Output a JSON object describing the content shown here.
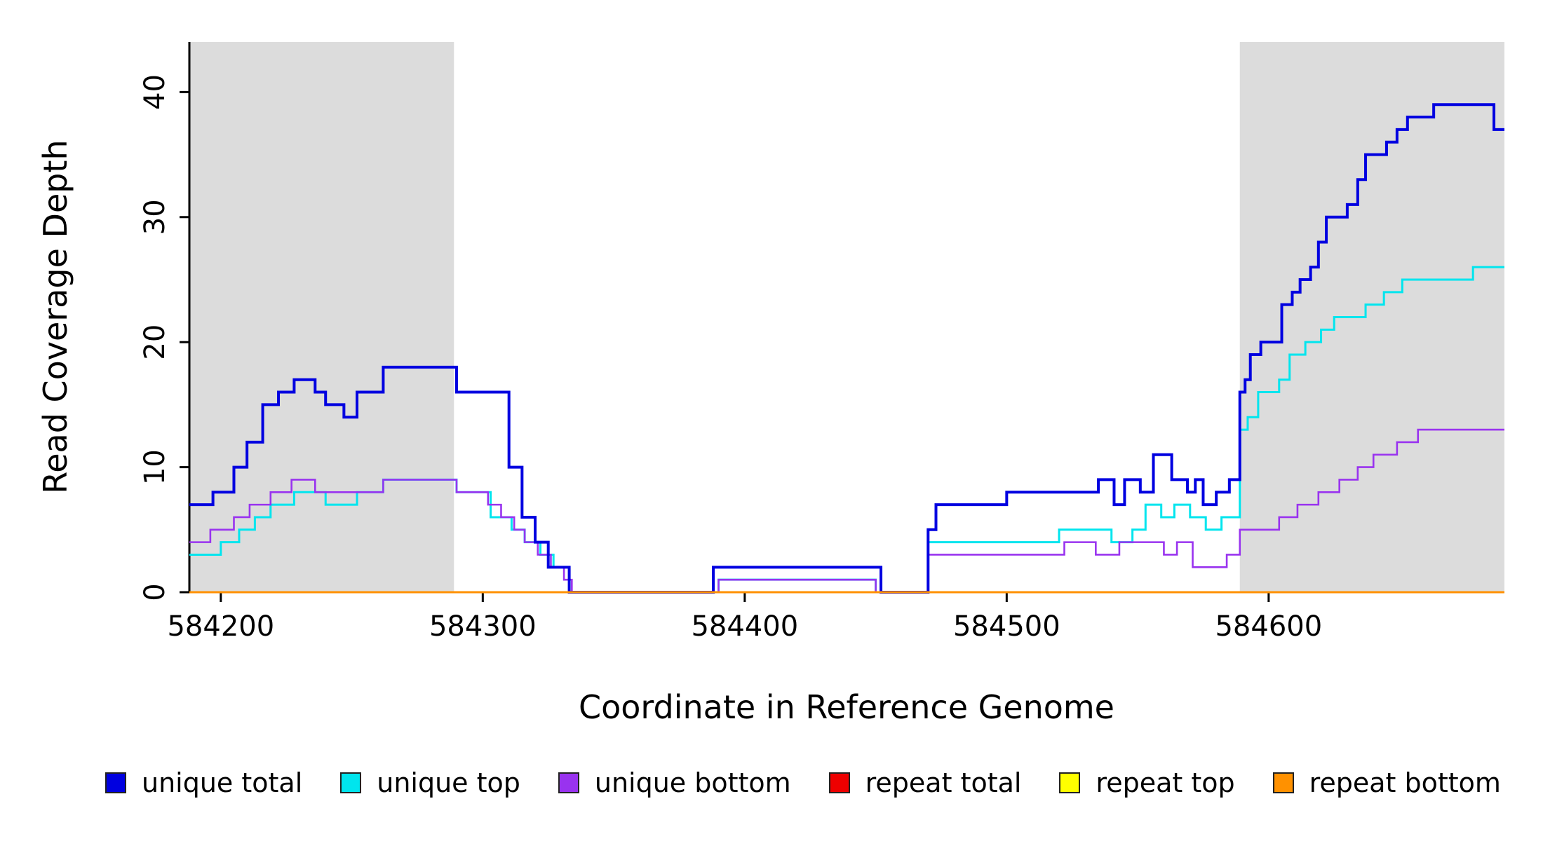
{
  "chart_data": {
    "type": "line",
    "subtype": "step-after-coverage-plot",
    "title": "",
    "xlabel": "Coordinate in Reference Genome",
    "ylabel": "Read Coverage Depth",
    "xlim": [
      584188,
      584690
    ],
    "ylim": [
      0,
      44
    ],
    "xticks": [
      584200,
      584300,
      584400,
      584500,
      584600
    ],
    "yticks": [
      0,
      10,
      20,
      30,
      40
    ],
    "grid": false,
    "legend_position": "bottom",
    "shaded_regions": [
      {
        "x0": 584188,
        "x1": 584289,
        "color": "#dcdcdc"
      },
      {
        "x0": 584589,
        "x1": 584690,
        "color": "#dcdcdc"
      }
    ],
    "series": [
      {
        "name": "unique total",
        "color": "#0000e0",
        "points": [
          [
            584188,
            7
          ],
          [
            584197,
            8
          ],
          [
            584205,
            10
          ],
          [
            584210,
            12
          ],
          [
            584216,
            15
          ],
          [
            584222,
            16
          ],
          [
            584228,
            17
          ],
          [
            584236,
            16
          ],
          [
            584240,
            15
          ],
          [
            584247,
            14
          ],
          [
            584252,
            16
          ],
          [
            584262,
            18
          ],
          [
            584290,
            16
          ],
          [
            584310,
            10
          ],
          [
            584315,
            6
          ],
          [
            584320,
            4
          ],
          [
            584325,
            2
          ],
          [
            584333,
            0
          ],
          [
            584388,
            2
          ],
          [
            584452,
            0
          ],
          [
            584470,
            5
          ],
          [
            584473,
            7
          ],
          [
            584500,
            8
          ],
          [
            584535,
            9
          ],
          [
            584541,
            7
          ],
          [
            584545,
            9
          ],
          [
            584551,
            8
          ],
          [
            584556,
            11
          ],
          [
            584563,
            9
          ],
          [
            584569,
            8
          ],
          [
            584572,
            9
          ],
          [
            584575,
            7
          ],
          [
            584580,
            8
          ],
          [
            584585,
            9
          ],
          [
            584589,
            16
          ],
          [
            584591,
            17
          ],
          [
            584593,
            19
          ],
          [
            584597,
            20
          ],
          [
            584605,
            23
          ],
          [
            584609,
            24
          ],
          [
            584612,
            25
          ],
          [
            584616,
            26
          ],
          [
            584619,
            28
          ],
          [
            584622,
            30
          ],
          [
            584630,
            31
          ],
          [
            584634,
            33
          ],
          [
            584637,
            35
          ],
          [
            584645,
            36
          ],
          [
            584649,
            37
          ],
          [
            584653,
            38
          ],
          [
            584663,
            39
          ],
          [
            584686,
            37
          ]
        ]
      },
      {
        "name": "unique top",
        "color": "#00e5ee",
        "points": [
          [
            584188,
            3
          ],
          [
            584200,
            4
          ],
          [
            584207,
            5
          ],
          [
            584213,
            6
          ],
          [
            584219,
            7
          ],
          [
            584228,
            8
          ],
          [
            584240,
            7
          ],
          [
            584252,
            8
          ],
          [
            584262,
            9
          ],
          [
            584290,
            8
          ],
          [
            584303,
            6
          ],
          [
            584311,
            5
          ],
          [
            584316,
            4
          ],
          [
            584322,
            3
          ],
          [
            584327,
            2
          ],
          [
            584333,
            0
          ],
          [
            584390,
            1
          ],
          [
            584450,
            0
          ],
          [
            584470,
            4
          ],
          [
            584520,
            5
          ],
          [
            584540,
            4
          ],
          [
            584548,
            5
          ],
          [
            584553,
            7
          ],
          [
            584559,
            6
          ],
          [
            584564,
            7
          ],
          [
            584570,
            6
          ],
          [
            584576,
            5
          ],
          [
            584582,
            6
          ],
          [
            584589,
            13
          ],
          [
            584592,
            14
          ],
          [
            584596,
            16
          ],
          [
            584604,
            17
          ],
          [
            584608,
            19
          ],
          [
            584614,
            20
          ],
          [
            584620,
            21
          ],
          [
            584625,
            22
          ],
          [
            584637,
            23
          ],
          [
            584644,
            24
          ],
          [
            584651,
            25
          ],
          [
            584678,
            26
          ]
        ]
      },
      {
        "name": "unique bottom",
        "color": "#9933ef",
        "points": [
          [
            584188,
            4
          ],
          [
            584196,
            5
          ],
          [
            584205,
            6
          ],
          [
            584211,
            7
          ],
          [
            584219,
            8
          ],
          [
            584227,
            9
          ],
          [
            584236,
            8
          ],
          [
            584262,
            9
          ],
          [
            584290,
            8
          ],
          [
            584302,
            7
          ],
          [
            584307,
            6
          ],
          [
            584312,
            5
          ],
          [
            584316,
            4
          ],
          [
            584321,
            3
          ],
          [
            584326,
            2
          ],
          [
            584331,
            1
          ],
          [
            584334,
            0
          ],
          [
            584390,
            1
          ],
          [
            584450,
            0
          ],
          [
            584470,
            3
          ],
          [
            584522,
            4
          ],
          [
            584534,
            3
          ],
          [
            584543,
            4
          ],
          [
            584560,
            3
          ],
          [
            584565,
            4
          ],
          [
            584571,
            2
          ],
          [
            584584,
            3
          ],
          [
            584589,
            5
          ],
          [
            584604,
            6
          ],
          [
            584611,
            7
          ],
          [
            584619,
            8
          ],
          [
            584627,
            9
          ],
          [
            584634,
            10
          ],
          [
            584640,
            11
          ],
          [
            584649,
            12
          ],
          [
            584657,
            13
          ]
        ]
      },
      {
        "name": "repeat total",
        "color": "#ee0000",
        "points": [
          [
            584188,
            0
          ]
        ]
      },
      {
        "name": "repeat top",
        "color": "#ffff00",
        "points": [
          [
            584188,
            0
          ]
        ]
      },
      {
        "name": "repeat bottom",
        "color": "#ff9100",
        "points": [
          [
            584188,
            0
          ]
        ]
      }
    ]
  }
}
